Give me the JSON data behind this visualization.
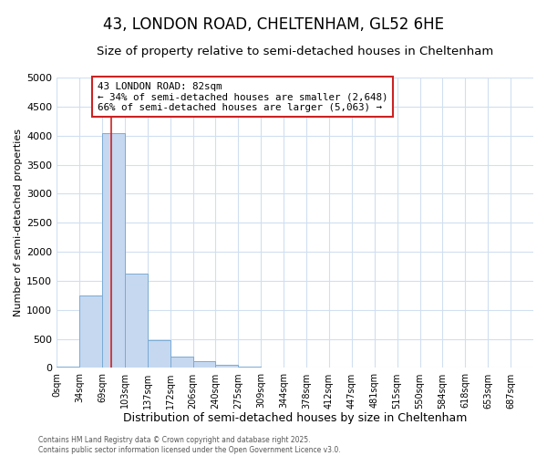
{
  "title1": "43, LONDON ROAD, CHELTENHAM, GL52 6HE",
  "title2": "Size of property relative to semi-detached houses in Cheltenham",
  "xlabel": "Distribution of semi-detached houses by size in Cheltenham",
  "ylabel": "Number of semi-detached properties",
  "bin_labels": [
    "0sqm",
    "34sqm",
    "69sqm",
    "103sqm",
    "137sqm",
    "172sqm",
    "206sqm",
    "240sqm",
    "275sqm",
    "309sqm",
    "344sqm",
    "378sqm",
    "412sqm",
    "447sqm",
    "481sqm",
    "515sqm",
    "550sqm",
    "584sqm",
    "618sqm",
    "653sqm",
    "687sqm"
  ],
  "bar_values": [
    30,
    1250,
    4050,
    1630,
    480,
    200,
    110,
    55,
    30,
    5,
    0,
    0,
    0,
    0,
    0,
    0,
    0,
    0,
    0,
    0,
    0
  ],
  "bar_color": "#c5d8f0",
  "bar_edge_color": "#7aabd4",
  "red_line_bin": 2.41,
  "annotation_title": "43 LONDON ROAD: 82sqm",
  "annotation_line1": "← 34% of semi-detached houses are smaller (2,648)",
  "annotation_line2": "66% of semi-detached houses are larger (5,063) →",
  "annotation_box_facecolor": "#ffffff",
  "annotation_box_edgecolor": "#cc2222",
  "footer1": "Contains HM Land Registry data © Crown copyright and database right 2025.",
  "footer2": "Contains public sector information licensed under the Open Government Licence v3.0.",
  "ylim": [
    0,
    5000
  ],
  "yticks": [
    0,
    500,
    1000,
    1500,
    2000,
    2500,
    3000,
    3500,
    4000,
    4500,
    5000
  ],
  "background_color": "#ffffff",
  "grid_color": "#d0dff0",
  "title1_fontsize": 12,
  "title2_fontsize": 9.5
}
